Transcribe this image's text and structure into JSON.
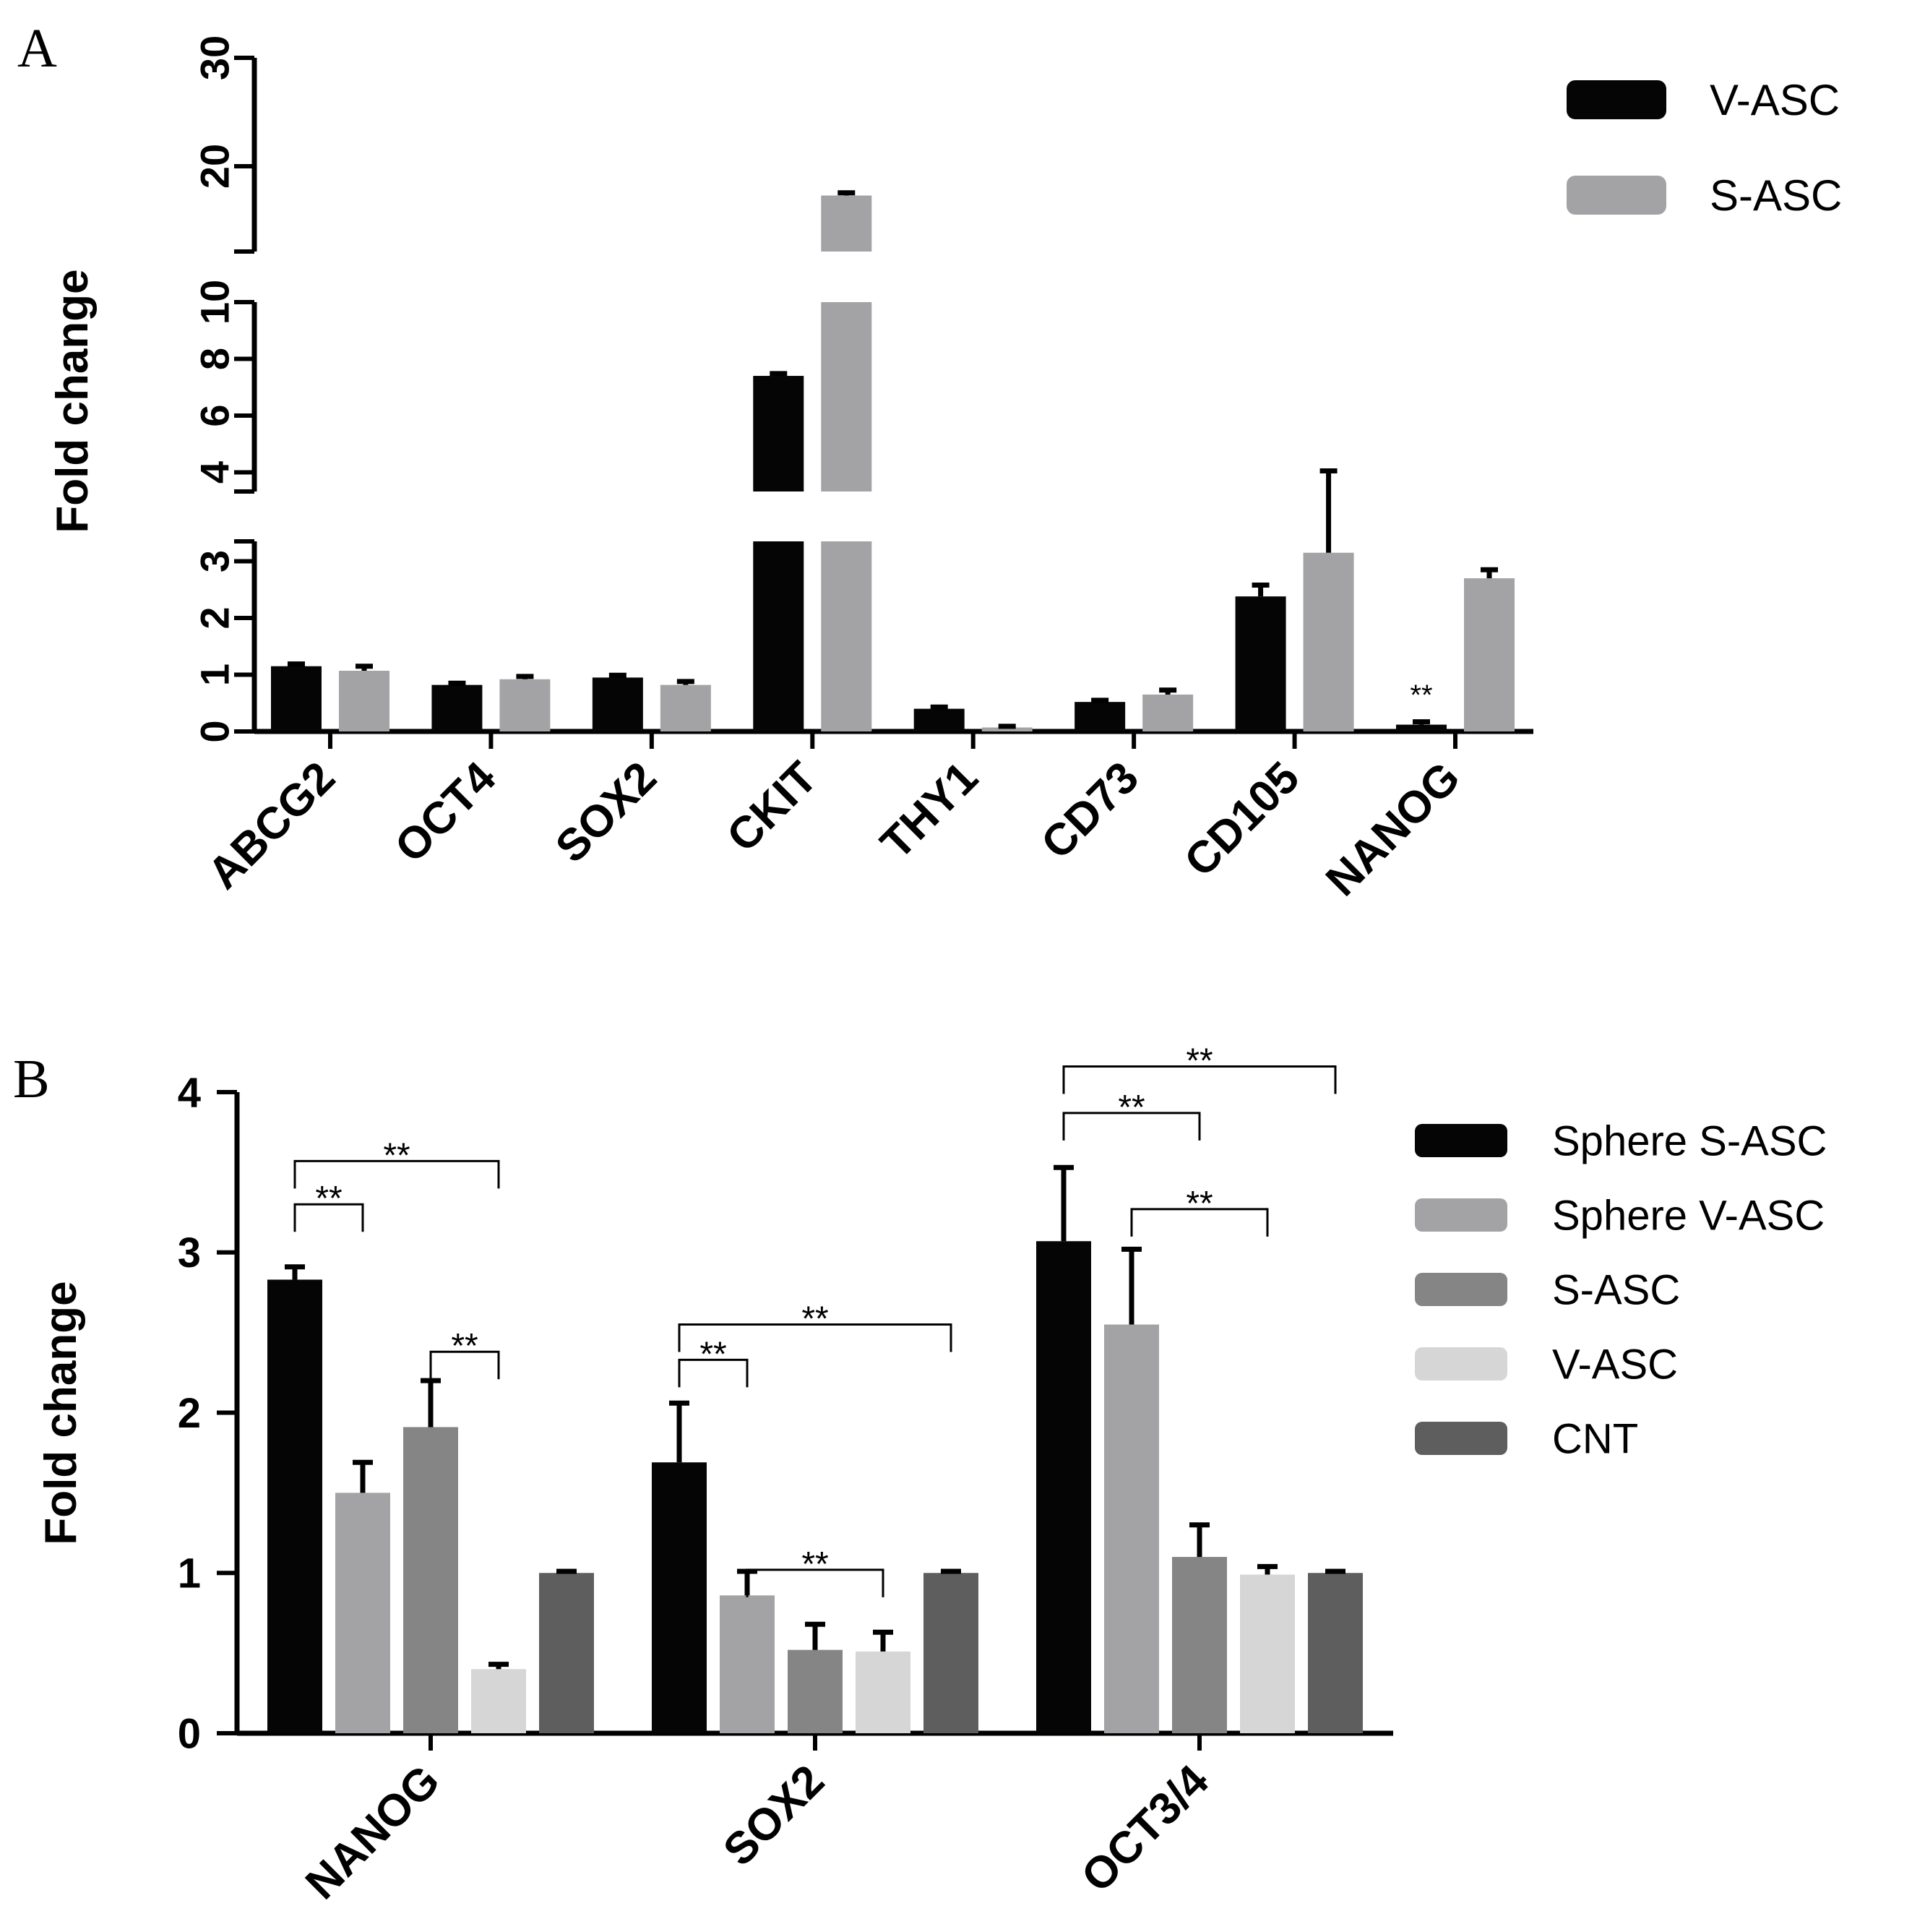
{
  "colors": {
    "v_asc_a": "#050505",
    "s_asc_a": "#a3a3a5",
    "sphere_s_asc": "#050505",
    "sphere_v_asc": "#a3a3a5",
    "s_asc_b": "#858585",
    "v_asc_b": "#d6d6d6",
    "cnt": "#5e5e5e"
  },
  "chart_data": [
    {
      "panel": "A",
      "type": "bar",
      "ylabel": "Fold change",
      "xlabel": "",
      "broken_axis": true,
      "segments": [
        {
          "range": [
            0,
            3.3
          ],
          "ticks": [
            0,
            1,
            2,
            3
          ]
        },
        {
          "range": [
            3.3,
            10
          ],
          "ticks": [
            4,
            6,
            8,
            10
          ]
        },
        {
          "range": [
            12.5,
            30
          ],
          "ticks": [
            20,
            30
          ]
        }
      ],
      "categories": [
        "ABCG2",
        "OCT4",
        "SOX2",
        "CKIT",
        "THY1",
        "CD73",
        "CD105",
        "NANOG"
      ],
      "series": [
        {
          "name": "V-ASC",
          "color": "#050505",
          "values": [
            1.15,
            0.82,
            0.95,
            7.4,
            0.4,
            0.52,
            2.38,
            0.12
          ],
          "errors": [
            0.04,
            0.03,
            0.04,
            0.08,
            0.03,
            0.03,
            0.2,
            0.05
          ]
        },
        {
          "name": "S-ASC",
          "color": "#a3a3a5",
          "values": [
            1.07,
            0.92,
            0.82,
            17.3,
            0.07,
            0.65,
            3.15,
            2.7
          ],
          "errors": [
            0.08,
            0.05,
            0.06,
            0.25,
            0.02,
            0.08,
            0.9,
            0.15
          ]
        }
      ],
      "annotations": [
        {
          "category": "NANOG",
          "text": "**"
        }
      ],
      "legend": {
        "position": "top-right",
        "entries": [
          "V-ASC",
          "S-ASC"
        ]
      }
    },
    {
      "panel": "B",
      "type": "bar",
      "ylabel": "Fold change",
      "xlabel": "",
      "ylim": [
        0,
        4
      ],
      "yticks": [
        0,
        1,
        2,
        3,
        4
      ],
      "categories": [
        "NANOG",
        "SOX2",
        "OCT3/4"
      ],
      "series": [
        {
          "name": "Sphere S-ASC",
          "color": "#050505",
          "values": [
            2.83,
            1.69,
            3.07
          ],
          "errors": [
            0.08,
            0.37,
            0.46
          ]
        },
        {
          "name": "Sphere V-ASC",
          "color": "#a3a3a5",
          "values": [
            1.5,
            0.86,
            2.55
          ],
          "errors": [
            0.19,
            0.15,
            0.47
          ]
        },
        {
          "name": "S-ASC",
          "color": "#858585",
          "values": [
            1.91,
            0.52,
            1.1
          ],
          "errors": [
            0.29,
            0.16,
            0.2
          ]
        },
        {
          "name": "V-ASC",
          "color": "#d6d6d6",
          "values": [
            0.4,
            0.51,
            0.99
          ],
          "errors": [
            0.03,
            0.12,
            0.05
          ]
        },
        {
          "name": "CNT",
          "color": "#5e5e5e",
          "values": [
            1.0,
            1.0,
            1.0
          ],
          "errors": [
            0.01,
            0.01,
            0.01
          ]
        }
      ],
      "significance": [
        {
          "category": "NANOG",
          "from": "Sphere S-ASC",
          "to": "Sphere V-ASC",
          "text": "**"
        },
        {
          "category": "NANOG",
          "from": "Sphere S-ASC",
          "to": "V-ASC",
          "text": "**"
        },
        {
          "category": "NANOG",
          "from": "S-ASC",
          "to": "V-ASC",
          "text": "**"
        },
        {
          "category": "SOX2",
          "from": "Sphere S-ASC",
          "to": "Sphere V-ASC",
          "text": "**"
        },
        {
          "category": "SOX2",
          "from": "Sphere S-ASC",
          "to": "CNT",
          "text": "**"
        },
        {
          "category": "SOX2",
          "from": "Sphere V-ASC",
          "to": "V-ASC",
          "text": "**"
        },
        {
          "category": "OCT3/4",
          "from": "Sphere S-ASC",
          "to": "S-ASC",
          "text": "**"
        },
        {
          "category": "OCT3/4",
          "from": "Sphere S-ASC",
          "to": "CNT",
          "text": "**"
        },
        {
          "category": "OCT3/4",
          "from": "Sphere V-ASC",
          "to": "V-ASC",
          "text": "**"
        }
      ],
      "legend": {
        "position": "top-right",
        "entries": [
          "Sphere S-ASC",
          "Sphere V-ASC",
          "S-ASC",
          "V-ASC",
          "CNT"
        ]
      }
    }
  ]
}
